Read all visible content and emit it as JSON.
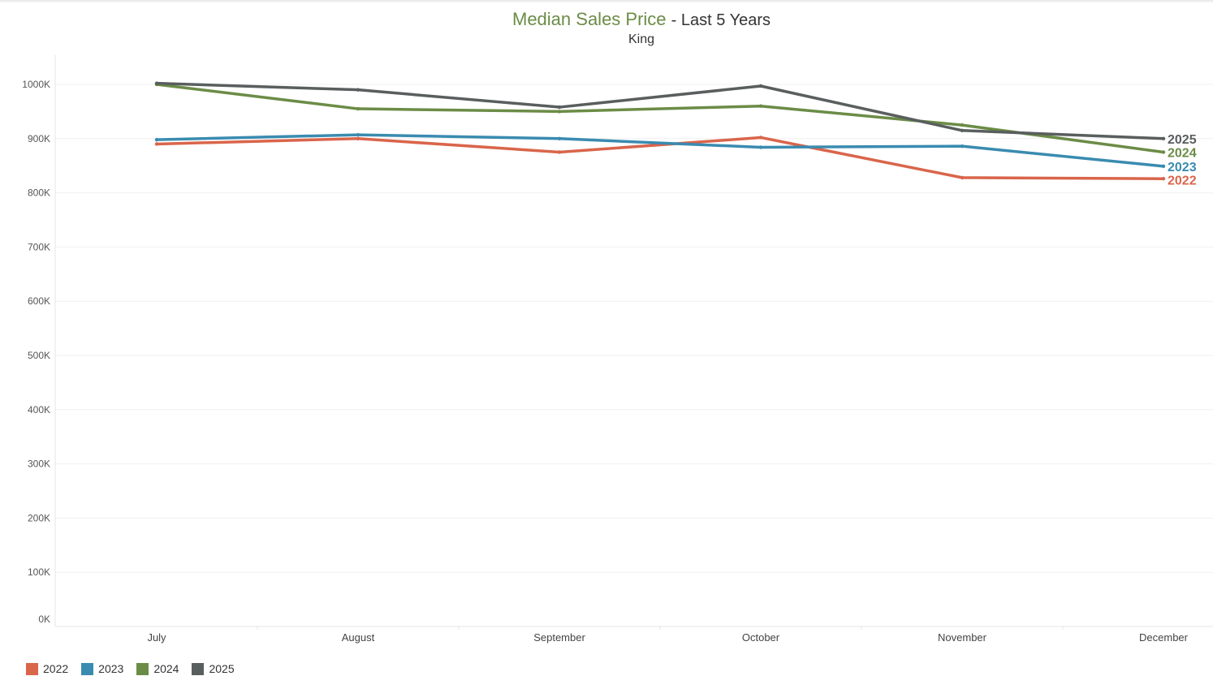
{
  "chart_data": {
    "type": "line",
    "title": "Median Sales Price",
    "title_suffix": "- Last 5 Years",
    "subtitle": "King",
    "categories": [
      "July",
      "August",
      "September",
      "October",
      "November",
      "December"
    ],
    "ylim": [
      0,
      1000000
    ],
    "yticks": [
      {
        "value": 1000000,
        "label": "1000K"
      },
      {
        "value": 900000,
        "label": "900K"
      },
      {
        "value": 800000,
        "label": "800K"
      },
      {
        "value": 700000,
        "label": "700K"
      },
      {
        "value": 600000,
        "label": "600K"
      },
      {
        "value": 500000,
        "label": "500K"
      },
      {
        "value": 400000,
        "label": "400K"
      },
      {
        "value": 300000,
        "label": "300K"
      },
      {
        "value": 200000,
        "label": "200K"
      },
      {
        "value": 100000,
        "label": "100K"
      },
      {
        "value": 0,
        "label": "0K"
      }
    ],
    "grid": true,
    "legend_position": "bottom-left",
    "series": [
      {
        "name": "2022",
        "color": "#d9654b",
        "values": [
          890000,
          900000,
          875000,
          902000,
          828000,
          826000
        ]
      },
      {
        "name": "2023",
        "color": "#3a8bb0",
        "values": [
          898000,
          907000,
          900000,
          884000,
          886000,
          849000
        ]
      },
      {
        "name": "2024",
        "color": "#6b8c46",
        "values": [
          1000000,
          955000,
          950000,
          960000,
          925000,
          875000
        ]
      },
      {
        "name": "2025",
        "color": "#595e5e",
        "values": [
          1002000,
          990000,
          958000,
          997000,
          915000,
          900000
        ]
      }
    ]
  }
}
